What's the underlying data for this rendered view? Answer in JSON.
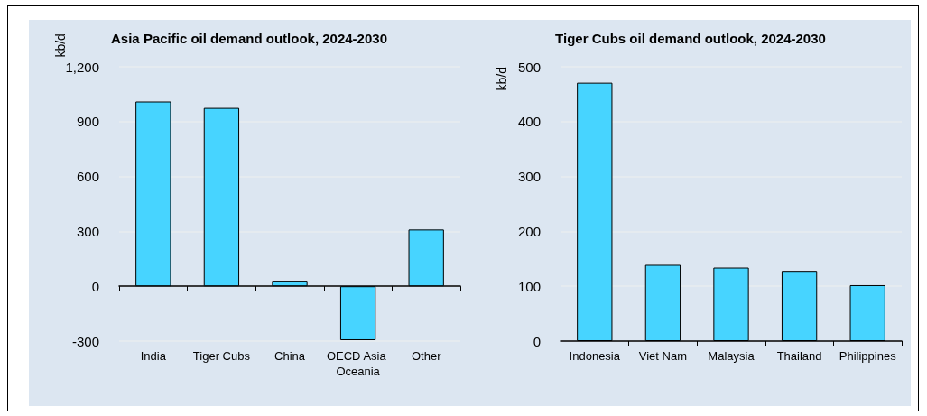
{
  "chart_data": [
    {
      "type": "bar",
      "title": "Asia Pacific oil demand outlook, 2024-2030",
      "ylabel": "kb/d",
      "categories": [
        "India",
        "Tiger Cubs",
        "China",
        "OECD Asia Oceania",
        "Other"
      ],
      "values": [
        1010,
        975,
        30,
        -295,
        310
      ],
      "color": "#47d4ff",
      "ylim": [
        -300,
        1200
      ],
      "yticks": [
        -300,
        0,
        300,
        600,
        900,
        {
          "value": 1200,
          "label": "1,200"
        }
      ],
      "grid": "y"
    },
    {
      "type": "bar",
      "title": "Tiger Cubs oil demand outlook, 2024-2030",
      "ylabel": "kb/d",
      "categories": [
        "Indonesia",
        "Viet Nam",
        "Malaysia",
        "Thailand",
        "Philippines"
      ],
      "values": [
        471,
        139,
        134,
        128,
        102
      ],
      "color": "#47d4ff",
      "ylim": [
        0,
        500
      ],
      "yticks": [
        0,
        100,
        200,
        300,
        400,
        500
      ],
      "grid": "y"
    }
  ]
}
